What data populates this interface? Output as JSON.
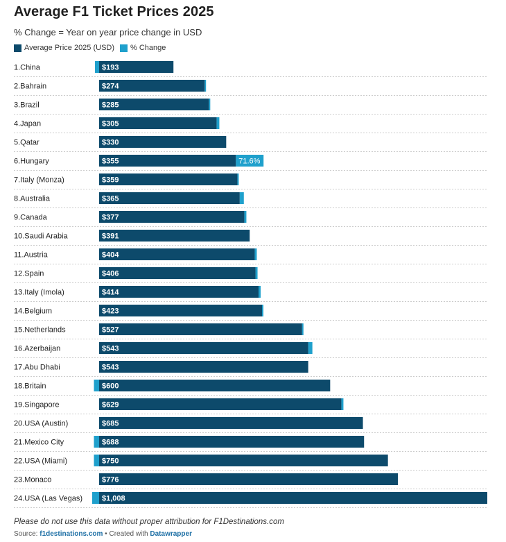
{
  "header": {
    "title": "Average F1 Ticket Prices 2025",
    "subtitle": "% Change = Year on year price change in USD"
  },
  "legend": [
    {
      "label": "Average Price 2025 (USD)",
      "color": "#0d4a6b"
    },
    {
      "label": "% Change",
      "color": "#1fa0cc"
    }
  ],
  "footer": {
    "note": "Please do not use this data without proper attribution for F1Destinations.com",
    "source_prefix": "Source:",
    "source_link": "f1destinations.com",
    "separator": "•",
    "created_prefix": "Created with",
    "created_link": "Datawrapper"
  },
  "chart_data": {
    "type": "bar",
    "orientation": "horizontal",
    "xlim": [
      0,
      1008
    ],
    "categories": [
      "1.China",
      "2.Bahrain",
      "3.Brazil",
      "4.Japan",
      "5.Qatar",
      "6.Hungary",
      "7.Italy (Monza)",
      "8.Australia",
      "9.Canada",
      "10.Saudi Arabia",
      "11.Austria",
      "12.Spain",
      "13.Italy (Imola)",
      "14.Belgium",
      "15.Netherlands",
      "16.Azerbaijan",
      "17.Abu Dhabi",
      "18.Britain",
      "19.Singapore",
      "20.USA (Austin)",
      "21.Mexico City",
      "22.USA (Miami)",
      "23.Monaco",
      "24.USA (Las Vegas)"
    ],
    "series": [
      {
        "name": "Average Price 2025 (USD)",
        "values": [
          193,
          274,
          285,
          305,
          330,
          355,
          359,
          365,
          377,
          391,
          404,
          406,
          414,
          423,
          527,
          543,
          543,
          600,
          629,
          685,
          688,
          750,
          776,
          1008
        ],
        "labels": [
          "$193",
          "$274",
          "$285",
          "$305",
          "$330",
          "$355",
          "$359",
          "$365",
          "$377",
          "$391",
          "$404",
          "$406",
          "$414",
          "$423",
          "$527",
          "$543",
          "$543",
          "$600",
          "$629",
          "$685",
          "$688",
          "$750",
          "$776",
          "$1,008"
        ]
      },
      {
        "name": "% Change",
        "values": [
          -2,
          1,
          2,
          4,
          0,
          71.6,
          2,
          6,
          3,
          0,
          3,
          3,
          3,
          1,
          1,
          6,
          0,
          -3,
          3,
          0,
          -3,
          -3,
          0,
          -4
        ],
        "labels": [
          "",
          "",
          "",
          "",
          "",
          "71.6%",
          "",
          "",
          "",
          "",
          "",
          "",
          "",
          "",
          "",
          "",
          "",
          "",
          "",
          "",
          "",
          "",
          "",
          ""
        ]
      }
    ],
    "grid": false,
    "legend_position": "top-left"
  }
}
